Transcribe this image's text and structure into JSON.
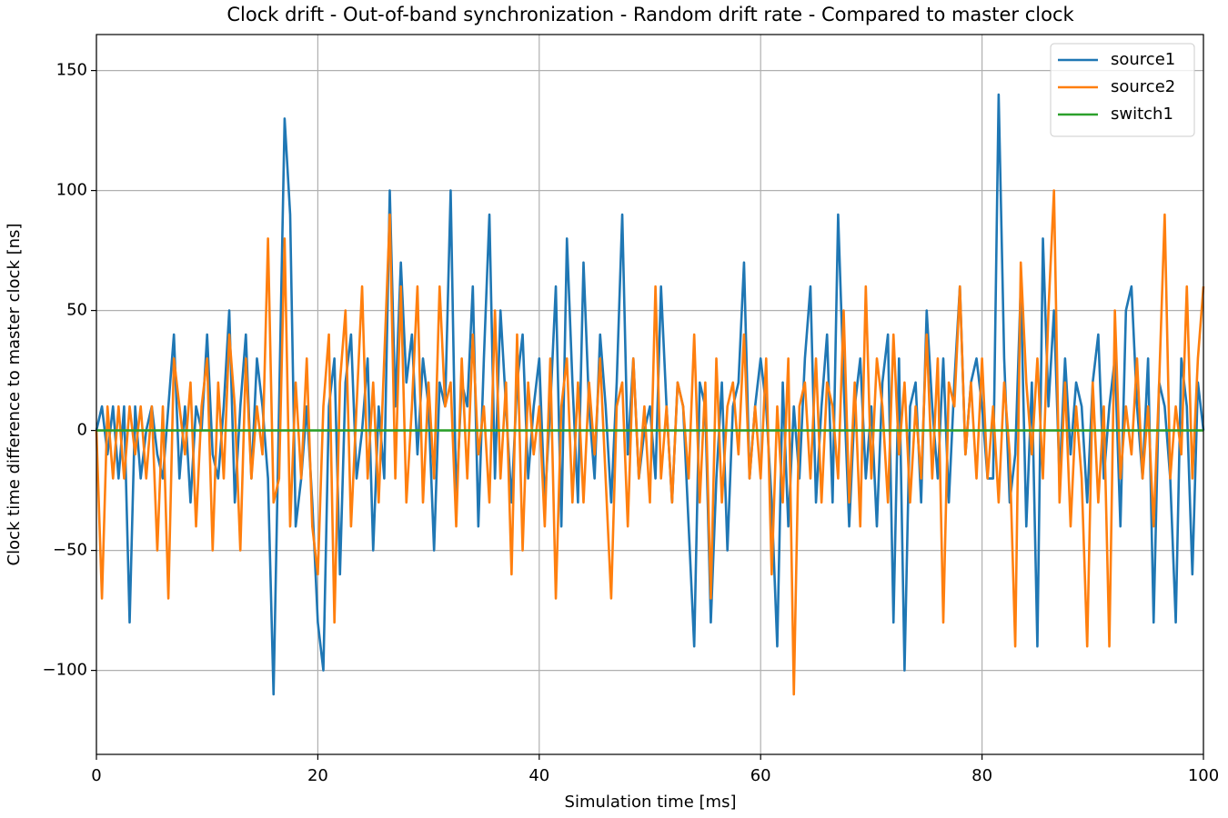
{
  "chart_data": {
    "type": "line",
    "title": "Clock drift - Out-of-band synchronization - Random drift rate - Compared to master clock",
    "xlabel": "Simulation time [ms]",
    "ylabel": "Clock time difference to master clock [ns]",
    "xlim": [
      0,
      100
    ],
    "ylim": [
      -135,
      165
    ],
    "xticks": [
      0,
      20,
      40,
      60,
      80,
      100
    ],
    "yticks": [
      {
        "value": -100,
        "label": "−100"
      },
      {
        "value": -50,
        "label": "−50"
      },
      0,
      50,
      100,
      150
    ],
    "grid": true,
    "legend": "upper right",
    "x": [
      0,
      0.5,
      1,
      1.5,
      2,
      2.5,
      3,
      3.5,
      4,
      4.5,
      5,
      5.5,
      6,
      6.5,
      7,
      7.5,
      8,
      8.5,
      9,
      9.5,
      10,
      10.5,
      11,
      11.5,
      12,
      12.5,
      13,
      13.5,
      14,
      14.5,
      15,
      15.5,
      16,
      16.5,
      17,
      17.5,
      18,
      18.5,
      19,
      19.5,
      20,
      20.5,
      21,
      21.5,
      22,
      22.5,
      23,
      23.5,
      24,
      24.5,
      25,
      25.5,
      26,
      26.5,
      27,
      27.5,
      28,
      28.5,
      29,
      29.5,
      30,
      30.5,
      31,
      31.5,
      32,
      32.5,
      33,
      33.5,
      34,
      34.5,
      35,
      35.5,
      36,
      36.5,
      37,
      37.5,
      38,
      38.5,
      39,
      39.5,
      40,
      40.5,
      41,
      41.5,
      42,
      42.5,
      43,
      43.5,
      44,
      44.5,
      45,
      45.5,
      46,
      46.5,
      47,
      47.5,
      48,
      48.5,
      49,
      49.5,
      50,
      50.5,
      51,
      51.5,
      52,
      52.5,
      53,
      53.5,
      54,
      54.5,
      55,
      55.5,
      56,
      56.5,
      57,
      57.5,
      58,
      58.5,
      59,
      59.5,
      60,
      60.5,
      61,
      61.5,
      62,
      62.5,
      63,
      63.5,
      64,
      64.5,
      65,
      65.5,
      66,
      66.5,
      67,
      67.5,
      68,
      68.5,
      69,
      69.5,
      70,
      70.5,
      71,
      71.5,
      72,
      72.5,
      73,
      73.5,
      74,
      74.5,
      75,
      75.5,
      76,
      76.5,
      77,
      77.5,
      78,
      78.5,
      79,
      79.5,
      80,
      80.5,
      81,
      81.5,
      82,
      82.5,
      83,
      83.5,
      84,
      84.5,
      85,
      85.5,
      86,
      86.5,
      87,
      87.5,
      88,
      88.5,
      89,
      89.5,
      90,
      90.5,
      91,
      91.5,
      92,
      92.5,
      93,
      93.5,
      94,
      94.5,
      95,
      95.5,
      96,
      96.5,
      97,
      97.5,
      98,
      98.5,
      99,
      99.5,
      100
    ],
    "series": [
      {
        "name": "source1",
        "color": "#1f77b4",
        "values": [
          0,
          10,
          -10,
          10,
          -20,
          10,
          -80,
          10,
          -20,
          0,
          10,
          -10,
          -20,
          10,
          40,
          -20,
          10,
          -30,
          10,
          0,
          40,
          -10,
          -20,
          10,
          50,
          -30,
          10,
          40,
          -20,
          30,
          10,
          -20,
          -110,
          10,
          130,
          90,
          -40,
          -20,
          10,
          -30,
          -80,
          -100,
          10,
          30,
          -60,
          20,
          40,
          -20,
          0,
          30,
          -50,
          10,
          -20,
          100,
          10,
          70,
          20,
          40,
          -10,
          30,
          10,
          -50,
          20,
          10,
          100,
          -30,
          20,
          10,
          60,
          -40,
          30,
          90,
          -20,
          50,
          10,
          -30,
          20,
          40,
          -20,
          10,
          30,
          -30,
          10,
          60,
          -40,
          80,
          20,
          -30,
          70,
          10,
          -20,
          40,
          10,
          -30,
          20,
          90,
          -10,
          30,
          -20,
          0,
          10,
          -20,
          60,
          10,
          -30,
          20,
          10,
          -40,
          -90,
          20,
          10,
          -80,
          -20,
          20,
          -50,
          10,
          20,
          70,
          -20,
          10,
          30,
          10,
          -30,
          -90,
          20,
          -40,
          10,
          -20,
          30,
          60,
          -30,
          10,
          40,
          -30,
          90,
          20,
          -40,
          10,
          30,
          -20,
          10,
          -40,
          20,
          40,
          -80,
          30,
          -100,
          10,
          20,
          -30,
          50,
          10,
          -20,
          30,
          -30,
          20,
          60,
          -10,
          20,
          30,
          10,
          -20,
          -20,
          140,
          30,
          -30,
          -10,
          60,
          -40,
          20,
          -90,
          80,
          10,
          50,
          -20,
          30,
          -10,
          20,
          10,
          -30,
          20,
          40,
          -20,
          10,
          30,
          -40,
          50,
          60,
          10,
          -20,
          30,
          -80,
          20,
          10,
          -20,
          -80,
          30,
          10,
          -60,
          20,
          0
        ]
      },
      {
        "name": "source2",
        "color": "#ff7f0e",
        "values": [
          0,
          -70,
          10,
          -20,
          10,
          -20,
          10,
          -10,
          10,
          -20,
          10,
          -50,
          10,
          -70,
          30,
          10,
          -10,
          20,
          -40,
          10,
          30,
          -50,
          20,
          -20,
          40,
          10,
          -50,
          30,
          -20,
          10,
          -10,
          80,
          -30,
          -20,
          80,
          -40,
          20,
          -20,
          30,
          -40,
          -60,
          10,
          40,
          -80,
          20,
          50,
          -40,
          10,
          60,
          -20,
          20,
          -30,
          30,
          90,
          -20,
          60,
          -30,
          10,
          60,
          -30,
          20,
          -20,
          60,
          10,
          20,
          -40,
          30,
          -20,
          40,
          -10,
          10,
          -30,
          50,
          -20,
          20,
          -60,
          40,
          -50,
          20,
          -10,
          10,
          -40,
          30,
          -70,
          10,
          30,
          -30,
          20,
          -30,
          20,
          -10,
          30,
          -20,
          -70,
          10,
          20,
          -40,
          30,
          -20,
          10,
          -30,
          60,
          -20,
          10,
          -30,
          20,
          10,
          -20,
          40,
          -30,
          20,
          -70,
          30,
          -30,
          10,
          20,
          -10,
          40,
          -20,
          10,
          -20,
          30,
          -60,
          10,
          -30,
          30,
          -110,
          10,
          20,
          -20,
          30,
          -30,
          20,
          10,
          -20,
          50,
          -30,
          20,
          -40,
          60,
          -20,
          30,
          10,
          -30,
          40,
          -10,
          20,
          -30,
          10,
          -20,
          40,
          -20,
          30,
          -80,
          20,
          10,
          60,
          -10,
          20,
          -20,
          30,
          -20,
          10,
          -30,
          20,
          -10,
          -90,
          70,
          20,
          -10,
          30,
          -20,
          50,
          100,
          -30,
          20,
          -40,
          10,
          -20,
          -90,
          20,
          -30,
          10,
          -90,
          50,
          -20,
          10,
          -10,
          30,
          -20,
          10,
          -40,
          20,
          90,
          -20,
          10,
          -10,
          60,
          -20,
          30,
          60
        ]
      },
      {
        "name": "switch1",
        "color": "#2ca02c",
        "x": [
          0,
          100
        ],
        "values": [
          0,
          0
        ]
      }
    ]
  }
}
